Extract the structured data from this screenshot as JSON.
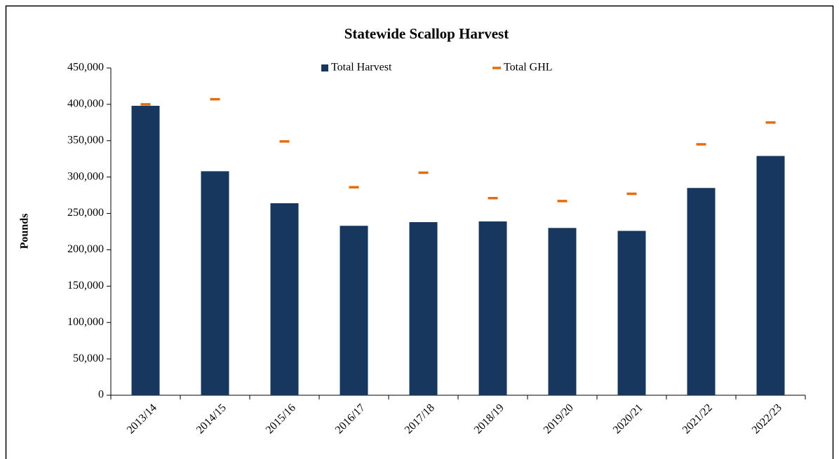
{
  "chart_data": {
    "type": "bar",
    "title": "Statewide Scallop Harvest",
    "y_label": "Pounds",
    "categories": [
      "2013/14",
      "2014/15",
      "2015/16",
      "2016/17",
      "2017/18",
      "2018/19",
      "2019/20",
      "2020/21",
      "2021/22",
      "2022/23"
    ],
    "series": [
      {
        "name": "Total Harvest",
        "type": "bar",
        "color": "#17375e",
        "values": [
          398000,
          308000,
          264000,
          233000,
          238000,
          239000,
          230000,
          226000,
          285000,
          329000
        ]
      },
      {
        "name": "Total GHL",
        "type": "dash",
        "color": "#e46c0a",
        "values": [
          400000,
          407000,
          349000,
          286000,
          306000,
          271000,
          267000,
          277000,
          345000,
          375000
        ]
      }
    ],
    "ylim": [
      0,
      450000
    ],
    "yticks": [
      0,
      {
        "value": 50000,
        "label": "50,000"
      },
      {
        "value": 100000,
        "label": "100,000"
      },
      {
        "value": 150000,
        "label": "150,000"
      },
      {
        "value": 200000,
        "label": "200,000"
      },
      {
        "value": 250000,
        "label": "250,000"
      },
      {
        "value": 300000,
        "label": "300,000"
      },
      {
        "value": 350000,
        "label": "350,000"
      },
      {
        "value": 400000,
        "label": "400,000"
      },
      {
        "value": 450000,
        "label": "450,000"
      }
    ],
    "grid": false,
    "legend": "top"
  }
}
